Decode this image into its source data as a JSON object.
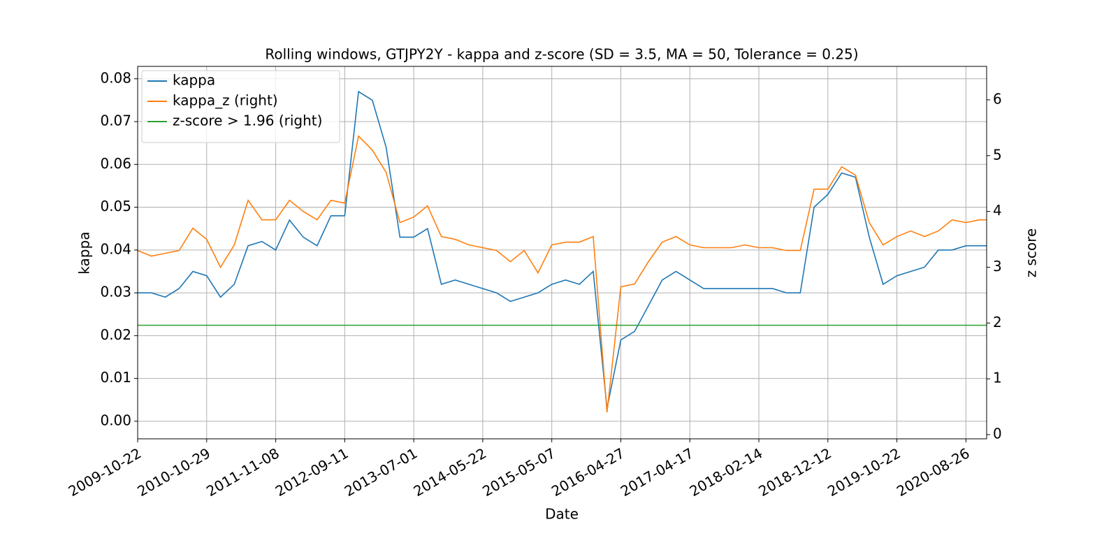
{
  "chart_data": {
    "type": "line",
    "title": "Rolling windows, GTJPY2Y - kappa and z-score (SD = 3.5, MA = 50, Tolerance  = 0.25)",
    "x_label": "Date",
    "y_label": "kappa",
    "y2_label": "z score",
    "x": [
      0,
      50,
      100,
      150,
      200,
      250,
      300,
      350,
      400,
      450,
      500,
      550,
      600,
      650,
      700,
      750,
      800,
      850,
      900,
      950,
      1000,
      1050,
      1100,
      1150,
      1200,
      1250,
      1300,
      1350,
      1400,
      1450,
      1500,
      1550,
      1600,
      1650,
      1700,
      1750,
      1800,
      1850,
      1900,
      1950,
      2000,
      2050,
      2100,
      2150,
      2200,
      2250,
      2300,
      2350,
      2400,
      2450,
      2500,
      2550,
      2600,
      2650,
      2700,
      2750,
      2800,
      2850,
      2900,
      2950,
      3000,
      3050,
      3075
    ],
    "series": [
      {
        "name": "kappa",
        "color": "#1f77b4",
        "values": [
          0.03,
          0.03,
          0.029,
          0.031,
          0.035,
          0.034,
          0.029,
          0.032,
          0.041,
          0.042,
          0.04,
          0.047,
          0.043,
          0.041,
          0.048,
          0.048,
          0.077,
          0.075,
          0.064,
          0.043,
          0.043,
          0.045,
          0.032,
          0.033,
          0.032,
          0.031,
          0.03,
          0.028,
          0.029,
          0.03,
          0.032,
          0.033,
          0.032,
          0.035,
          0.003,
          0.019,
          0.021,
          0.027,
          0.033,
          0.035,
          0.033,
          0.031,
          0.031,
          0.031,
          0.031,
          0.031,
          0.031,
          0.03,
          0.03,
          0.05,
          0.053,
          0.058,
          0.057,
          0.043,
          0.032,
          0.034,
          0.035,
          0.036,
          0.04,
          0.04,
          0.041,
          0.041,
          0.041
        ]
      },
      {
        "name": "kappa_z (right)",
        "color": "#ff7f0e",
        "axis": "y2",
        "values": [
          3.3,
          3.2,
          3.25,
          3.3,
          3.7,
          3.5,
          3.0,
          3.4,
          4.2,
          3.85,
          3.85,
          4.2,
          4.0,
          3.85,
          4.2,
          4.15,
          5.35,
          5.1,
          4.7,
          3.8,
          3.9,
          4.1,
          3.55,
          3.5,
          3.4,
          3.35,
          3.3,
          3.1,
          3.3,
          2.9,
          3.4,
          3.45,
          3.45,
          3.55,
          0.4,
          2.65,
          2.7,
          3.1,
          3.45,
          3.55,
          3.4,
          3.35,
          3.35,
          3.35,
          3.4,
          3.35,
          3.35,
          3.3,
          3.3,
          4.4,
          4.4,
          4.8,
          4.65,
          3.8,
          3.4,
          3.55,
          3.65,
          3.55,
          3.65,
          3.85,
          3.8,
          3.85,
          3.85
        ]
      },
      {
        "name": "z-score > 1.96 (right)",
        "color": "#2ca02c",
        "axis": "y2",
        "values": [
          1.96,
          1.96,
          1.96,
          1.96,
          1.96,
          1.96,
          1.96,
          1.96,
          1.96,
          1.96,
          1.96,
          1.96,
          1.96,
          1.96,
          1.96,
          1.96,
          1.96,
          1.96,
          1.96,
          1.96,
          1.96,
          1.96,
          1.96,
          1.96,
          1.96,
          1.96,
          1.96,
          1.96,
          1.96,
          1.96,
          1.96,
          1.96,
          1.96,
          1.96,
          1.96,
          1.96,
          1.96,
          1.96,
          1.96,
          1.96,
          1.96,
          1.96,
          1.96,
          1.96,
          1.96,
          1.96,
          1.96,
          1.96,
          1.96,
          1.96,
          1.96,
          1.96,
          1.96,
          1.96,
          1.96,
          1.96,
          1.96,
          1.96,
          1.96,
          1.96,
          1.96,
          1.96,
          1.96
        ]
      }
    ],
    "xlim": [
      0,
      3075
    ],
    "xticks": [
      {
        "value": 0,
        "label": "2009-10-22"
      },
      {
        "value": 250,
        "label": "2010-10-29"
      },
      {
        "value": 500,
        "label": "2011-11-08"
      },
      {
        "value": 750,
        "label": "2012-09-11"
      },
      {
        "value": 1000,
        "label": "2013-07-01"
      },
      {
        "value": 1250,
        "label": "2014-05-22"
      },
      {
        "value": 1500,
        "label": "2015-05-07"
      },
      {
        "value": 1750,
        "label": "2016-04-27"
      },
      {
        "value": 2000,
        "label": "2017-04-17"
      },
      {
        "value": 2250,
        "label": "2018-02-14"
      },
      {
        "value": 2500,
        "label": "2018-12-12"
      },
      {
        "value": 2750,
        "label": "2019-10-22"
      },
      {
        "value": 3000,
        "label": "2020-08-26"
      }
    ],
    "ylim": [
      -0.0041,
      0.0829
    ],
    "yticks": [
      {
        "value": 0,
        "label": "0.00"
      },
      0.01,
      0.02,
      0.03,
      0.04,
      0.05,
      0.06,
      0.07,
      0.08
    ],
    "y2lim": [
      -0.075,
      6.6
    ],
    "y2ticks": [
      0,
      1,
      2,
      3,
      4,
      5,
      6
    ],
    "grid": true,
    "legend": "upper left"
  }
}
